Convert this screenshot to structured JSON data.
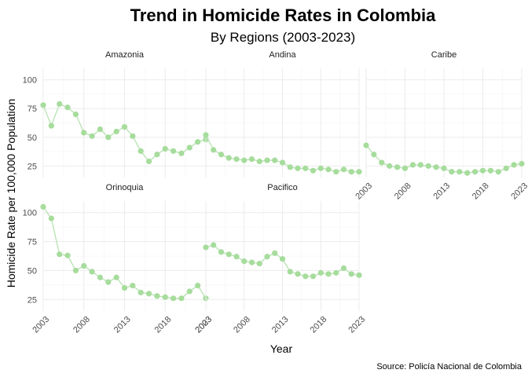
{
  "chart_data": {
    "type": "line",
    "title": "Trend in Homicide Rates in Colombia",
    "subtitle": "By Regions (2003-2023)",
    "xlabel": "Year",
    "ylabel": "Homicide Rate per 100,000 Population",
    "caption": "Source: Policía Nacional de Colombia",
    "xlim": [
      2003,
      2023
    ],
    "ylim": [
      15,
      110
    ],
    "x_ticks": [
      2003,
      2008,
      2013,
      2018,
      2023
    ],
    "y_ticks": [
      25,
      50,
      75,
      100
    ],
    "grid": true,
    "line_color": "#b7e2b1",
    "point_color": "#a6dc9c",
    "x": [
      2003,
      2004,
      2005,
      2006,
      2007,
      2008,
      2009,
      2010,
      2011,
      2012,
      2013,
      2014,
      2015,
      2016,
      2017,
      2018,
      2019,
      2020,
      2021,
      2022,
      2023
    ],
    "panels": [
      {
        "name": "Amazonia",
        "values": [
          78,
          60,
          79,
          76,
          70,
          54,
          51,
          57,
          50,
          55,
          59,
          51,
          38,
          29,
          35,
          40,
          38,
          36,
          41,
          46,
          48
        ]
      },
      {
        "name": "Andina",
        "values": [
          52,
          39,
          35,
          32,
          31,
          30,
          31,
          29,
          30,
          30,
          28,
          24,
          23,
          23,
          21,
          23,
          22,
          20,
          22,
          20,
          20
        ]
      },
      {
        "name": "Caribe",
        "values": [
          43,
          35,
          28,
          25,
          24,
          23,
          26,
          26,
          25,
          24,
          23,
          20,
          20,
          19,
          20,
          21,
          21,
          20,
          23,
          26,
          27
        ]
      },
      {
        "name": "Orinoquia",
        "values": [
          105,
          95,
          64,
          63,
          50,
          54,
          49,
          44,
          40,
          44,
          35,
          37,
          31,
          30,
          28,
          27,
          26,
          26,
          32,
          37,
          26
        ]
      },
      {
        "name": "Pacifico",
        "values": [
          70,
          72,
          66,
          64,
          62,
          58,
          57,
          56,
          62,
          65,
          60,
          49,
          47,
          45,
          45,
          48,
          47,
          48,
          52,
          47,
          46
        ]
      }
    ]
  }
}
